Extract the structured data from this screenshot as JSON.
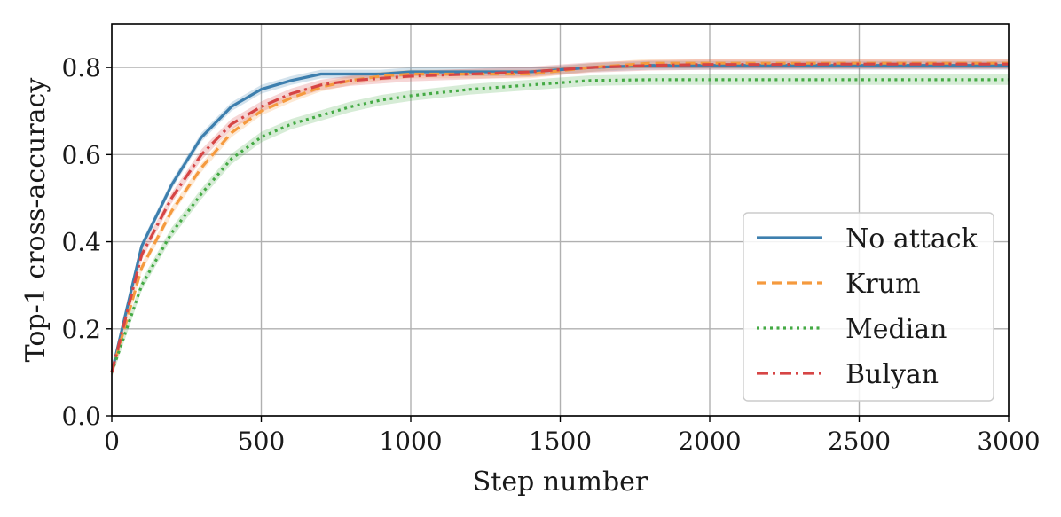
{
  "chart_data": {
    "type": "line",
    "xlabel": "Step number",
    "ylabel": "Top-1 cross-accuracy",
    "xlim": [
      0,
      3000
    ],
    "ylim": [
      0.0,
      0.9
    ],
    "xticks": [
      0,
      500,
      1000,
      1500,
      2000,
      2500,
      3000
    ],
    "xtick_labels": [
      "0",
      "500",
      "1000",
      "1500",
      "2000",
      "2500",
      "3000"
    ],
    "yticks": [
      0.0,
      0.2,
      0.4,
      0.6,
      0.8
    ],
    "ytick_labels": [
      "0.0",
      "0.2",
      "0.4",
      "0.6",
      "0.8"
    ],
    "grid": true,
    "legend_position": "lower-right",
    "x": [
      0,
      100,
      200,
      300,
      400,
      500,
      600,
      700,
      800,
      900,
      1000,
      1200,
      1400,
      1600,
      1800,
      2000,
      2200,
      2400,
      2600,
      2800,
      3000
    ],
    "series": [
      {
        "name": "No attack",
        "color": "#3d7fae",
        "dash": "solid",
        "values": [
          0.1,
          0.39,
          0.53,
          0.64,
          0.71,
          0.75,
          0.77,
          0.785,
          0.785,
          0.785,
          0.79,
          0.79,
          0.79,
          0.8,
          0.805,
          0.805,
          0.805,
          0.805,
          0.805,
          0.805,
          0.805
        ],
        "band": 0.01
      },
      {
        "name": "Krum",
        "color": "#f59a3e",
        "dash": "dashed",
        "values": [
          0.1,
          0.34,
          0.47,
          0.57,
          0.65,
          0.7,
          0.73,
          0.755,
          0.77,
          0.78,
          0.785,
          0.785,
          0.785,
          0.8,
          0.81,
          0.81,
          0.81,
          0.81,
          0.81,
          0.81,
          0.81
        ],
        "band": 0.01
      },
      {
        "name": "Median",
        "color": "#44aa44",
        "dash": "dotted",
        "values": [
          0.1,
          0.3,
          0.42,
          0.51,
          0.59,
          0.64,
          0.67,
          0.69,
          0.71,
          0.725,
          0.735,
          0.75,
          0.76,
          0.77,
          0.772,
          0.772,
          0.772,
          0.772,
          0.772,
          0.772,
          0.772
        ],
        "band": 0.012
      },
      {
        "name": "Bulyan",
        "color": "#d64545",
        "dash": "dashdot",
        "values": [
          0.1,
          0.37,
          0.5,
          0.6,
          0.67,
          0.71,
          0.74,
          0.76,
          0.77,
          0.775,
          0.78,
          0.785,
          0.79,
          0.8,
          0.805,
          0.807,
          0.807,
          0.808,
          0.808,
          0.808,
          0.808
        ],
        "band": 0.012
      }
    ]
  }
}
